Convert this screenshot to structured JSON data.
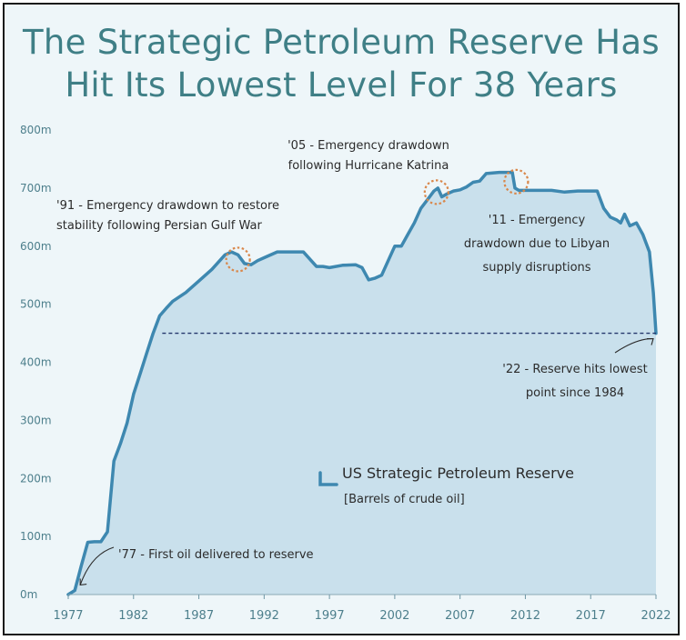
{
  "chart_data": {
    "type": "area",
    "title": [
      "The Strategic Petroleum Reserve Has",
      "Hit Its Lowest Level For 38 Years"
    ],
    "colors": {
      "line": "#3e88b0",
      "fill": "#c9e0ec",
      "title": "#3f7f86",
      "annotation_circle": "#d9874a",
      "reference_line": "#23366b"
    },
    "y_ticks": [
      "800m",
      "700m",
      "600m",
      "500m",
      "400m",
      "300m",
      "200m",
      "100m",
      "0m"
    ],
    "y_tick_values": [
      800,
      700,
      600,
      500,
      400,
      300,
      200,
      100,
      0
    ],
    "x_ticks": [
      "1977",
      "1982",
      "1987",
      "1992",
      "1997",
      "2002",
      "2007",
      "2012",
      "2017",
      "2022"
    ],
    "x_tick_values": [
      1977,
      1982,
      1987,
      1992,
      1997,
      2002,
      2007,
      2012,
      2017,
      2022
    ],
    "xlim": [
      1977,
      2022
    ],
    "ylim": [
      0,
      800
    ],
    "grid": false,
    "legend": {
      "position": "center",
      "label": "US Strategic Petroleum Reserve",
      "sublabel": "[Barrels of crude oil]"
    },
    "series": [
      {
        "name": "US Strategic Petroleum Reserve",
        "x": [
          1977.0,
          1977.5,
          1978.0,
          1978.5,
          1979.0,
          1979.5,
          1980.0,
          1980.5,
          1981.0,
          1981.5,
          1982.0,
          1982.5,
          1983.0,
          1983.5,
          1984.0,
          1984.5,
          1985.0,
          1986.0,
          1987.0,
          1988.0,
          1989.0,
          1989.5,
          1990.0,
          1990.5,
          1991.0,
          1991.5,
          1992.0,
          1993.0,
          1994.0,
          1995.0,
          1996.0,
          1996.5,
          1997.0,
          1998.0,
          1999.0,
          1999.5,
          2000.0,
          2000.5,
          2001.0,
          2001.5,
          2002.0,
          2002.5,
          2003.0,
          2003.5,
          2004.0,
          2004.5,
          2005.0,
          2005.3,
          2005.6,
          2006.0,
          2006.5,
          2007.0,
          2007.5,
          2008.0,
          2008.5,
          2009.0,
          2010.0,
          2010.5,
          2011.0,
          2011.2,
          2011.5,
          2012.0,
          2013.0,
          2014.0,
          2015.0,
          2016.0,
          2017.0,
          2017.5,
          2018.0,
          2018.5,
          2019.0,
          2019.3,
          2019.6,
          2020.0,
          2020.5,
          2021.0,
          2021.5,
          2021.8,
          2022.0
        ],
        "values": [
          0,
          7,
          50,
          90,
          91,
          91,
          108,
          230,
          260,
          295,
          345,
          380,
          415,
          450,
          480,
          493,
          505,
          520,
          540,
          560,
          585,
          590,
          585,
          570,
          568,
          575,
          580,
          590,
          590,
          590,
          565,
          565,
          563,
          567,
          568,
          563,
          542,
          545,
          550,
          575,
          600,
          600,
          620,
          640,
          665,
          680,
          695,
          700,
          685,
          690,
          695,
          697,
          702,
          710,
          712,
          725,
          727,
          727,
          727,
          700,
          696,
          696,
          696,
          696,
          693,
          695,
          695,
          695,
          665,
          650,
          645,
          640,
          655,
          635,
          640,
          620,
          590,
          520,
          450
        ]
      }
    ],
    "reference_line": {
      "y": 450,
      "style": "dashed"
    },
    "annotations": [
      {
        "id": "a77",
        "lines": [
          "'77 - First oil delivered to reserve"
        ],
        "target_x": 1977.5,
        "target_y": 7
      },
      {
        "id": "a91",
        "lines": [
          "'91 - Emergency drawdown to restore",
          "stability following Persian Gulf War"
        ],
        "target_x": 1990.0,
        "target_y": 577
      },
      {
        "id": "a05",
        "lines": [
          "'05 - Emergency drawdown",
          "following Hurricane Katrina"
        ],
        "target_x": 2005.2,
        "target_y": 693
      },
      {
        "id": "a11",
        "lines": [
          "'11 - Emergency",
          "drawdown due to Libyan",
          "supply disruptions"
        ],
        "target_x": 2011.3,
        "target_y": 711
      },
      {
        "id": "a22",
        "lines": [
          "'22 - Reserve hits lowest",
          "point since 1984"
        ],
        "target_x": 2022.0,
        "target_y": 450
      }
    ]
  }
}
